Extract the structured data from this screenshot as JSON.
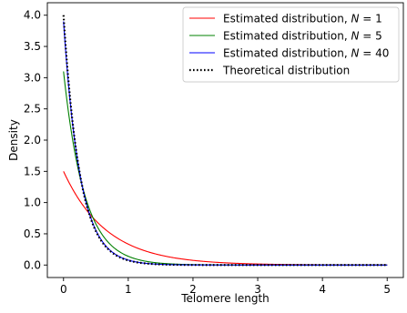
{
  "chart_data": {
    "type": "line",
    "title": "",
    "xlabel": "Telomere length",
    "ylabel": "Density",
    "xlim": [
      -0.25,
      5.25
    ],
    "ylim": [
      -0.2,
      4.2
    ],
    "x_ticks": [
      0,
      1,
      2,
      3,
      4,
      5
    ],
    "x_tick_labels": [
      "0",
      "1",
      "2",
      "3",
      "4",
      "5"
    ],
    "y_ticks": [
      0.0,
      0.5,
      1.0,
      1.5,
      2.0,
      2.5,
      3.0,
      3.5,
      4.0
    ],
    "y_tick_labels": [
      "0.0",
      "0.5",
      "1.0",
      "1.5",
      "2.0",
      "2.5",
      "3.0",
      "3.5",
      "4.0"
    ],
    "grid": false,
    "legend_position": "top-right",
    "series": [
      {
        "name": "Estimated distribution, N = 1",
        "legend_prefix": "Estimated distribution, ",
        "legend_var": "N",
        "legend_suffix": " =  1",
        "color": "#ff0000",
        "style": "solid",
        "function": "exponential",
        "rate": 1.5,
        "x_start": 0,
        "x_end": 5
      },
      {
        "name": "Estimated distribution, N = 5",
        "legend_prefix": "Estimated distribution, ",
        "legend_var": "N",
        "legend_suffix": " =  5",
        "color": "#008000",
        "style": "solid",
        "function": "exponential",
        "rate": 3.1,
        "x_start": 0,
        "x_end": 5
      },
      {
        "name": "Estimated distribution, N = 40",
        "legend_prefix": "Estimated distribution, ",
        "legend_var": "N",
        "legend_suffix": " =  40",
        "color": "#0000ff",
        "style": "solid",
        "function": "exponential",
        "rate": 3.9,
        "x_start": 0,
        "x_end": 5
      },
      {
        "name": "Theoretical distribution",
        "legend_prefix": "Theoretical distribution",
        "legend_var": "",
        "legend_suffix": "",
        "color": "#000000",
        "style": "dotted",
        "function": "exponential",
        "rate": 4.0,
        "x_start": 0,
        "x_end": 5
      }
    ]
  }
}
